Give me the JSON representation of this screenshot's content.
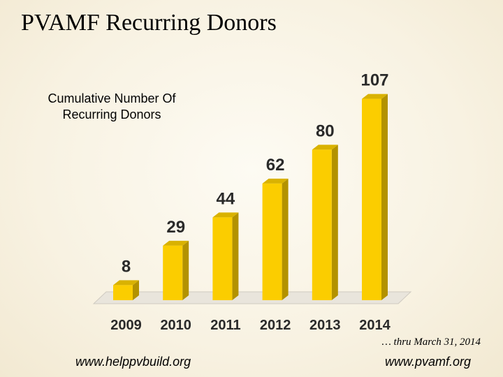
{
  "slide": {
    "title": "PVAMF Recurring Donors",
    "footnote": "… thru March 31, 2014",
    "footer_left": "www.helppvbuild.org",
    "footer_right": "www.pvamf.org"
  },
  "chart_data": {
    "type": "bar",
    "title": "Cumulative Number Of Recurring Donors",
    "categories": [
      "2009",
      "2010",
      "2011",
      "2012",
      "2013",
      "2014"
    ],
    "values": [
      8,
      29,
      44,
      62,
      80,
      107
    ],
    "xlabel": "",
    "ylabel": "",
    "ylim": [
      0,
      115
    ],
    "grid": false,
    "legend": "none",
    "colors": {
      "bar_front": "#fbcd00",
      "bar_side": "#b39200",
      "bar_top": "#d9b200",
      "floor": "#e9e5dc",
      "floor_stroke": "#cfcac0"
    }
  }
}
